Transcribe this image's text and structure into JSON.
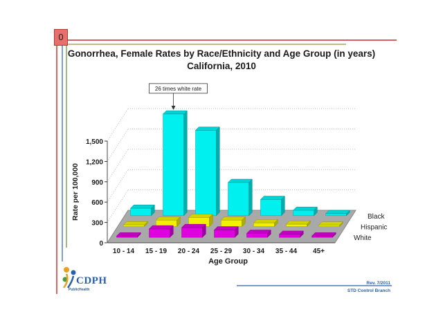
{
  "slide_number": "0",
  "footer": {
    "logo_text": "CDPH",
    "logo_sub": "PublicHealth",
    "revision": "Rev. 7/2011",
    "branch": "STD Control Branch"
  },
  "colors": {
    "black_series": "#00f0f0",
    "hispanic_series": "#f0f000",
    "white_series": "#e000e0",
    "accent_red": "#c00000",
    "accent_blue": "#2b5fa8"
  },
  "chart_data": {
    "type": "bar",
    "title": "Gonorrhea, Female Rates by Race/Ethnicity and Age Group (in years)",
    "subtitle": "California, 2010",
    "xlabel": "Age Group",
    "ylabel": "Rate per 100,000",
    "ylim": [
      0,
      1500
    ],
    "yticks": [
      "0",
      "300",
      "600",
      "900",
      "1,200",
      "1,500"
    ],
    "categories": [
      "10 - 14",
      "15 - 19",
      "20 - 24",
      "25 - 29",
      "30 - 34",
      "35 - 44",
      "45+"
    ],
    "series": [
      {
        "name": "White",
        "values": [
          10,
          125,
          145,
          110,
          60,
          45,
          15
        ]
      },
      {
        "name": "Hispanic",
        "values": [
          25,
          95,
          135,
          95,
          55,
          35,
          15
        ]
      },
      {
        "name": "Black",
        "values": [
          110,
          1500,
          1260,
          490,
          240,
          80,
          30
        ]
      }
    ],
    "annotation": "26 times white rate",
    "grid": true
  }
}
